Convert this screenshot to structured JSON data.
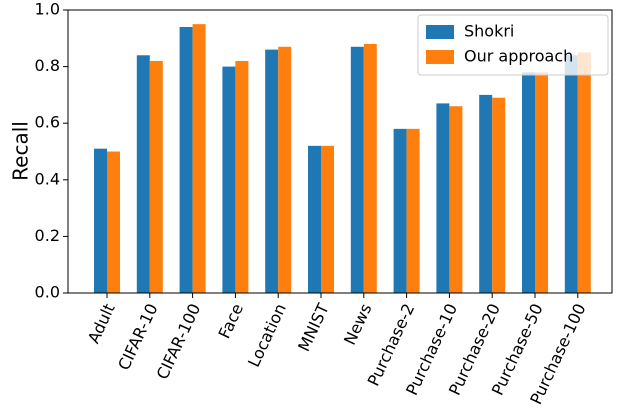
{
  "chart_data": {
    "type": "bar",
    "y_label": "Recall",
    "categories": [
      "Adult",
      "CIFAR-10",
      "CIFAR-100",
      "Face",
      "Location",
      "MNIST",
      "News",
      "Purchase-2",
      "Purchase-10",
      "Purchase-20",
      "Purchase-50",
      "Purchase-100"
    ],
    "series": [
      {
        "name": "Shokri",
        "color": "#1f77b4",
        "values": [
          0.51,
          0.84,
          0.94,
          0.8,
          0.86,
          0.52,
          0.87,
          0.58,
          0.67,
          0.7,
          0.78,
          0.84
        ]
      },
      {
        "name": "Our approach",
        "color": "#ff7f0e",
        "values": [
          0.5,
          0.82,
          0.95,
          0.82,
          0.87,
          0.52,
          0.88,
          0.58,
          0.66,
          0.69,
          0.78,
          0.85
        ]
      }
    ],
    "ylim": [
      0,
      1
    ],
    "yticks": [
      {
        "value": 0,
        "label": "0.0"
      },
      0.2,
      0.4,
      0.6,
      0.8,
      {
        "value": 1,
        "label": "1.0"
      }
    ],
    "legend": "upper right"
  }
}
